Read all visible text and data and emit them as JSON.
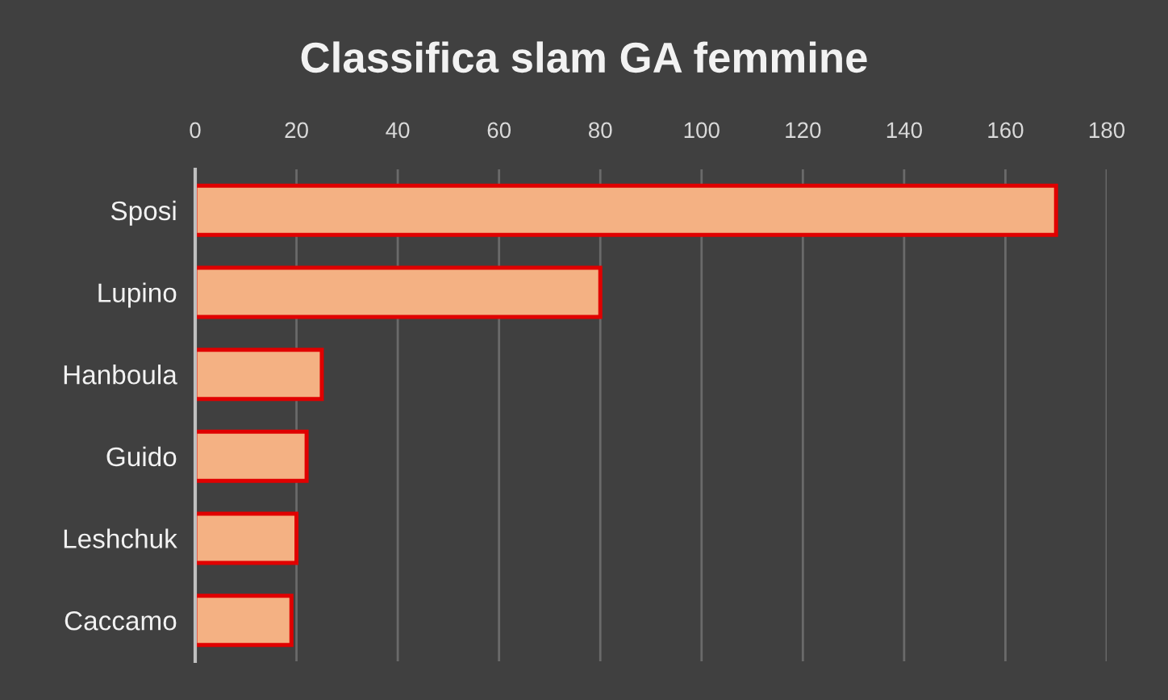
{
  "chart_data": {
    "type": "bar",
    "orientation": "horizontal",
    "title": "Classifica slam GA femmine",
    "categories": [
      "Sposi",
      "Lupino",
      "Hanboula",
      "Guido",
      "Leshchuk",
      "Caccamo"
    ],
    "values": [
      170,
      80,
      25,
      22,
      20,
      19
    ],
    "color": "#f4b183",
    "xlim": [
      0,
      180
    ],
    "xticks": [
      0,
      20,
      40,
      60,
      80,
      100,
      120,
      140,
      160,
      180
    ],
    "grid": "x"
  }
}
